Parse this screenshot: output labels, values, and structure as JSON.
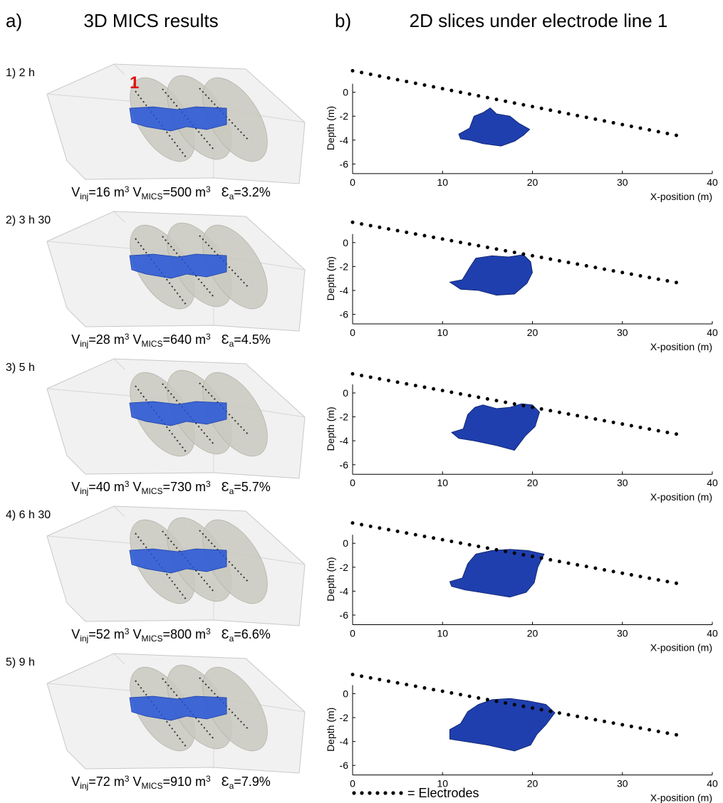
{
  "panel_a": {
    "label": "a)",
    "title": "3D MICS results",
    "marker": "1",
    "rows": [
      {
        "label": "1) 2 h",
        "caption": [
          "V",
          "inj",
          "=16 m",
          "3",
          " V",
          "MICS",
          "=500 m",
          "3",
          "   Ɛ",
          "a",
          "=3.2%"
        ]
      },
      {
        "label": "2) 3 h 30",
        "caption": [
          "V",
          "inj",
          "=28 m",
          "3",
          " V",
          "MICS",
          "=640 m",
          "3",
          "   Ɛ",
          "a",
          "=4.5%"
        ]
      },
      {
        "label": "3) 5 h",
        "caption": [
          "V",
          "inj",
          "=40 m",
          "3",
          " V",
          "MICS",
          "=730 m",
          "3",
          "   Ɛ",
          "a",
          "=5.7%"
        ]
      },
      {
        "label": "4) 6 h 30",
        "caption": [
          "V",
          "inj",
          "=52 m",
          "3",
          " V",
          "MICS",
          "=800 m",
          "3",
          "   Ɛ",
          "a",
          "=6.6%"
        ]
      },
      {
        "label": "5) 9 h",
        "caption": [
          "V",
          "inj",
          "=72 m",
          "3",
          " V",
          "MICS",
          "=910 m",
          "3",
          "   Ɛ",
          "a",
          "=7.9%"
        ]
      }
    ]
  },
  "panel_b": {
    "label": "b)",
    "title": "2D slices under electrode line 1",
    "legend": "= Electrodes"
  },
  "chart_data": [
    {
      "type": "scatter",
      "xlabel": "X-position (m)",
      "ylabel": "Depth (m)",
      "xlim": [
        0,
        40
      ],
      "ylim": [
        -6.8,
        2
      ],
      "xticks": [
        0,
        10,
        20,
        30,
        40
      ],
      "yticks": [
        0,
        -2,
        -4,
        -6
      ],
      "electrodes": {
        "color": "#000000",
        "x": [
          0,
          1,
          2,
          3,
          4,
          5,
          6,
          7,
          8,
          9,
          10,
          11,
          12,
          13,
          14,
          15,
          16,
          17,
          18,
          19,
          20,
          21,
          22,
          23,
          24,
          25,
          26,
          27,
          28,
          29,
          30,
          31,
          32,
          33,
          34,
          35,
          36
        ],
        "y": [
          1.8,
          1.65,
          1.5,
          1.35,
          1.2,
          1.05,
          0.9,
          0.75,
          0.6,
          0.45,
          0.3,
          0.15,
          0,
          -0.15,
          -0.3,
          -0.45,
          -0.6,
          -0.75,
          -0.9,
          -1.05,
          -1.2,
          -1.35,
          -1.5,
          -1.65,
          -1.8,
          -1.95,
          -2.1,
          -2.25,
          -2.4,
          -2.55,
          -2.7,
          -2.85,
          -3,
          -3.15,
          -3.3,
          -3.45,
          -3.6
        ]
      },
      "anomaly": {
        "color": "#1f3fae",
        "x": [
          11.8,
          13,
          13.5,
          14.5,
          15.3,
          16,
          17.5,
          18.5,
          19.7,
          19,
          18,
          16.5,
          14.5,
          13,
          12
        ],
        "y": [
          -3.5,
          -3.0,
          -2.0,
          -1.7,
          -1.3,
          -1.8,
          -2.0,
          -2.6,
          -3.1,
          -3.6,
          -4.1,
          -4.5,
          -4.3,
          -4.0,
          -3.9
        ]
      }
    },
    {
      "type": "scatter",
      "xlabel": "X-position (m)",
      "ylabel": "Depth (m)",
      "xlim": [
        0,
        40
      ],
      "ylim": [
        -6.8,
        2
      ],
      "xticks": [
        0,
        10,
        20,
        30,
        40
      ],
      "yticks": [
        0,
        -2,
        -4,
        -6
      ],
      "electrodes": {
        "color": "#000000",
        "x": [
          0,
          1,
          2,
          3,
          4,
          5,
          6,
          7,
          8,
          9,
          10,
          11,
          12,
          13,
          14,
          15,
          16,
          17,
          18,
          19,
          20,
          21,
          22,
          23,
          24,
          25,
          26,
          27,
          28,
          29,
          30,
          31,
          32,
          33,
          34,
          35,
          36
        ],
        "y": [
          1.7,
          1.56,
          1.42,
          1.28,
          1.14,
          1,
          0.86,
          0.72,
          0.58,
          0.44,
          0.3,
          0.16,
          0.02,
          -0.12,
          -0.26,
          -0.4,
          -0.54,
          -0.68,
          -0.82,
          -0.96,
          -1.1,
          -1.24,
          -1.38,
          -1.52,
          -1.66,
          -1.8,
          -1.94,
          -2.08,
          -2.22,
          -2.36,
          -2.5,
          -2.64,
          -2.78,
          -2.92,
          -3.06,
          -3.2,
          -3.34
        ]
      },
      "anomaly": {
        "color": "#1f3fae",
        "x": [
          10.8,
          12.2,
          13,
          13.7,
          15.5,
          17.3,
          19,
          19.8,
          20,
          19.4,
          18,
          16,
          14,
          12
        ],
        "y": [
          -3.3,
          -3.1,
          -2.1,
          -1.3,
          -1.1,
          -1.2,
          -1.0,
          -1.6,
          -2.5,
          -3.4,
          -4.3,
          -4.4,
          -4.0,
          -3.9
        ]
      }
    },
    {
      "type": "scatter",
      "xlabel": "X-position (m)",
      "ylabel": "Depth (m)",
      "xlim": [
        0,
        40
      ],
      "ylim": [
        -6.8,
        2
      ],
      "xticks": [
        0,
        10,
        20,
        30,
        40
      ],
      "yticks": [
        0,
        -2,
        -4,
        -6
      ],
      "electrodes": {
        "color": "#000000",
        "x": [
          0,
          1,
          2,
          3,
          4,
          5,
          6,
          7,
          8,
          9,
          10,
          11,
          12,
          13,
          14,
          15,
          16,
          17,
          18,
          19,
          20,
          21,
          22,
          23,
          24,
          25,
          26,
          27,
          28,
          29,
          30,
          31,
          32,
          33,
          34,
          35,
          36
        ],
        "y": [
          1.6,
          1.46,
          1.32,
          1.18,
          1.04,
          0.9,
          0.76,
          0.62,
          0.48,
          0.34,
          0.2,
          0.06,
          -0.08,
          -0.22,
          -0.36,
          -0.5,
          -0.64,
          -0.78,
          -0.92,
          -1.06,
          -1.2,
          -1.34,
          -1.48,
          -1.62,
          -1.76,
          -1.9,
          -2.04,
          -2.18,
          -2.32,
          -2.46,
          -2.6,
          -2.74,
          -2.88,
          -3.02,
          -3.16,
          -3.3,
          -3.44
        ]
      },
      "anomaly": {
        "color": "#1f3fae",
        "x": [
          11,
          12.3,
          12.8,
          13.6,
          14.5,
          16,
          17.5,
          18.8,
          20,
          20.8,
          20.3,
          19.2,
          18,
          16,
          13.5,
          11.8
        ],
        "y": [
          -3.3,
          -3.0,
          -1.8,
          -1.2,
          -1.0,
          -1.3,
          -1.2,
          -0.9,
          -1.0,
          -1.6,
          -2.8,
          -3.6,
          -4.8,
          -4.4,
          -4.0,
          -3.8
        ]
      }
    },
    {
      "type": "scatter",
      "xlabel": "X-position (m)",
      "ylabel": "Depth (m)",
      "xlim": [
        0,
        40
      ],
      "ylim": [
        -6.8,
        2
      ],
      "xticks": [
        0,
        10,
        20,
        30,
        40
      ],
      "yticks": [
        0,
        -2,
        -4,
        -6
      ],
      "electrodes": {
        "color": "#000000",
        "x": [
          0,
          1,
          2,
          3,
          4,
          5,
          6,
          7,
          8,
          9,
          10,
          11,
          12,
          13,
          14,
          15,
          16,
          17,
          18,
          19,
          20,
          21,
          22,
          23,
          24,
          25,
          26,
          27,
          28,
          29,
          30,
          31,
          32,
          33,
          34,
          35,
          36
        ],
        "y": [
          1.7,
          1.56,
          1.42,
          1.28,
          1.14,
          1,
          0.86,
          0.72,
          0.58,
          0.44,
          0.3,
          0.16,
          0.02,
          -0.12,
          -0.26,
          -0.4,
          -0.54,
          -0.68,
          -0.82,
          -0.96,
          -1.1,
          -1.24,
          -1.38,
          -1.52,
          -1.66,
          -1.8,
          -1.94,
          -2.08,
          -2.22,
          -2.36,
          -2.5,
          -2.64,
          -2.78,
          -2.92,
          -3.06,
          -3.2,
          -3.34
        ]
      },
      "anomaly": {
        "color": "#1f3fae",
        "x": [
          10.8,
          12.2,
          12.8,
          13.7,
          15.5,
          17.5,
          19.5,
          21.3,
          20.6,
          20.2,
          19.3,
          17.5,
          15,
          12.5,
          11
        ],
        "y": [
          -3.2,
          -2.9,
          -1.7,
          -0.9,
          -0.6,
          -0.5,
          -0.6,
          -0.9,
          -2.0,
          -3.3,
          -4.1,
          -4.5,
          -4.2,
          -3.9,
          -3.6
        ]
      }
    },
    {
      "type": "scatter",
      "xlabel": "X-position (m)",
      "ylabel": "Depth (m)",
      "xlim": [
        0,
        40
      ],
      "ylim": [
        -6.8,
        2
      ],
      "xticks": [
        0,
        10,
        20,
        30,
        40
      ],
      "yticks": [
        0,
        -2,
        -4,
        -6
      ],
      "electrodes": {
        "color": "#000000",
        "x": [
          0,
          1,
          2,
          3,
          4,
          5,
          6,
          7,
          8,
          9,
          10,
          11,
          12,
          13,
          14,
          15,
          16,
          17,
          18,
          19,
          20,
          21,
          22,
          23,
          24,
          25,
          26,
          27,
          28,
          29,
          30,
          31,
          32,
          33,
          34,
          35,
          36
        ],
        "y": [
          1.6,
          1.46,
          1.32,
          1.18,
          1.04,
          0.9,
          0.76,
          0.62,
          0.48,
          0.34,
          0.2,
          0.06,
          -0.08,
          -0.22,
          -0.36,
          -0.5,
          -0.64,
          -0.78,
          -0.92,
          -1.06,
          -1.2,
          -1.34,
          -1.48,
          -1.62,
          -1.76,
          -1.9,
          -2.04,
          -2.18,
          -2.32,
          -2.46,
          -2.6,
          -2.74,
          -2.88,
          -3.02,
          -3.16,
          -3.3,
          -3.44
        ]
      },
      "anomaly": {
        "color": "#1f3fae",
        "x": [
          10.8,
          12,
          12.8,
          14,
          15.5,
          17.5,
          19.5,
          21.5,
          22.5,
          21.5,
          20.5,
          19.8,
          18,
          15,
          12.5,
          10.8
        ],
        "y": [
          -3.0,
          -2.5,
          -1.5,
          -0.9,
          -0.5,
          -0.4,
          -0.6,
          -0.9,
          -1.6,
          -2.6,
          -3.4,
          -4.3,
          -4.8,
          -4.3,
          -4.0,
          -3.8
        ]
      }
    }
  ]
}
